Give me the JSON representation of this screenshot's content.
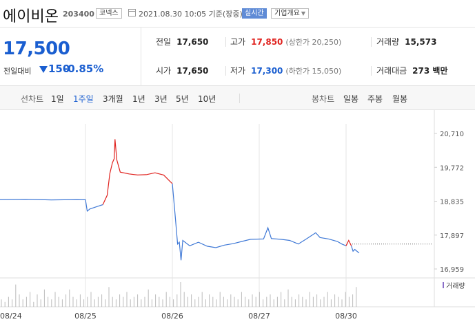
{
  "header": {
    "stock_name": "에이비온",
    "stock_code": "203400",
    "market": "코넥스",
    "datetime": "2021.08.30 10:05 기준(장중)",
    "realtime_button": "실시간",
    "company_button": "기업개요"
  },
  "price": {
    "current": "17,500",
    "diff_label": "전일대비",
    "diff_value": "150",
    "diff_rate": "-0.85%",
    "colors": {
      "down": "#1a5ed0",
      "up": "#e0221e"
    }
  },
  "quote": {
    "prev_close": {
      "label": "전일",
      "value": "17,650"
    },
    "high": {
      "label": "고가",
      "value": "17,850",
      "sub": "(상한가 20,250)"
    },
    "volume": {
      "label": "거래량",
      "value": "15,573"
    },
    "open": {
      "label": "시가",
      "value": "17,650"
    },
    "low": {
      "label": "저가",
      "value": "17,300",
      "sub": "(하한가 15,050)"
    },
    "amount": {
      "label": "거래대금",
      "value": "273 백만"
    }
  },
  "period_bar": {
    "line_label": "선차트",
    "line_periods": [
      "1일",
      "1주일",
      "3개월",
      "1년",
      "3년",
      "5년",
      "10년"
    ],
    "active_line_period": "1주일",
    "candle_label": "봉차트",
    "candle_periods": [
      "일봉",
      "주봉",
      "월봉"
    ]
  },
  "chart_data": {
    "type": "line",
    "y_ticks": [
      "20,710",
      "19,772",
      "18,835",
      "17,897",
      "16,959"
    ],
    "ylim": [
      16959,
      20710
    ],
    "x_labels": [
      "08/24",
      "08/25",
      "08/26",
      "08/27",
      "08/30"
    ],
    "prev_close_line": 17650,
    "volume_label": "거래량",
    "series": [
      {
        "color": "#3e78d6",
        "points": [
          [
            0,
            18880
          ],
          [
            0.3,
            18890
          ],
          [
            0.6,
            18870
          ],
          [
            0.9,
            18880
          ],
          [
            1.0,
            18875
          ],
          [
            1.02,
            18560
          ],
          [
            1.05,
            18620
          ],
          [
            1.15,
            18700
          ],
          [
            1.2,
            18740
          ]
        ]
      },
      {
        "color": "#e0221e",
        "points": [
          [
            1.2,
            18740
          ],
          [
            1.25,
            19000
          ],
          [
            1.28,
            19600
          ],
          [
            1.31,
            19900
          ],
          [
            1.33,
            20010
          ],
          [
            1.34,
            20550
          ],
          [
            1.36,
            19980
          ],
          [
            1.4,
            19640
          ],
          [
            1.5,
            19590
          ],
          [
            1.6,
            19560
          ],
          [
            1.7,
            19570
          ],
          [
            1.8,
            19620
          ],
          [
            1.9,
            19560
          ],
          [
            1.97,
            19390
          ],
          [
            2.0,
            19320
          ]
        ]
      },
      {
        "color": "#3e78d6",
        "points": [
          [
            2.0,
            19320
          ],
          [
            2.03,
            18500
          ],
          [
            2.06,
            17650
          ],
          [
            2.08,
            17700
          ],
          [
            2.1,
            17200
          ],
          [
            2.12,
            17750
          ],
          [
            2.2,
            17600
          ],
          [
            2.3,
            17700
          ],
          [
            2.4,
            17590
          ],
          [
            2.5,
            17550
          ],
          [
            2.6,
            17620
          ],
          [
            2.7,
            17660
          ],
          [
            2.8,
            17720
          ],
          [
            2.9,
            17780
          ],
          [
            3.05,
            17790
          ],
          [
            3.1,
            18100
          ],
          [
            3.14,
            17800
          ],
          [
            3.25,
            17780
          ],
          [
            3.35,
            17750
          ],
          [
            3.45,
            17650
          ],
          [
            3.55,
            17800
          ],
          [
            3.65,
            17960
          ],
          [
            3.7,
            17830
          ],
          [
            3.8,
            17790
          ],
          [
            3.9,
            17720
          ],
          [
            3.95,
            17650
          ],
          [
            4.0,
            17600
          ]
        ]
      },
      {
        "color": "#e0221e",
        "points": [
          [
            4.0,
            17600
          ],
          [
            4.03,
            17750
          ],
          [
            4.06,
            17600
          ]
        ]
      },
      {
        "color": "#3e78d6",
        "points": [
          [
            4.06,
            17600
          ],
          [
            4.08,
            17450
          ],
          [
            4.1,
            17500
          ],
          [
            4.15,
            17400
          ]
        ]
      }
    ],
    "volume": [
      0.3,
      0.2,
      0.4,
      0.3,
      0.9,
      0.5,
      0.3,
      0.4,
      0.6,
      0.2,
      0.5,
      0.3,
      0.7,
      0.4,
      0.3,
      0.6,
      0.4,
      0.3,
      0.5,
      0.7,
      0.4,
      0.3,
      0.5,
      0.3,
      0.4,
      0.6,
      0.3,
      0.4,
      0.5,
      0.3,
      0.8,
      0.4,
      0.3,
      0.5,
      0.4,
      0.6,
      0.3,
      0.4,
      0.5,
      0.3,
      0.4,
      0.7,
      0.3,
      0.5,
      0.4,
      0.3,
      0.6,
      0.4,
      0.3,
      0.5,
      1.0,
      0.6,
      0.4,
      0.5,
      0.3,
      0.4,
      0.6,
      0.3,
      0.5,
      0.4,
      0.3,
      0.6,
      0.4,
      0.3,
      0.5,
      0.4,
      0.3,
      0.6,
      0.4,
      0.3,
      0.5,
      0.4,
      0.6,
      0.3,
      0.4,
      0.5,
      0.3,
      0.4,
      0.6,
      0.3,
      0.7,
      0.4,
      0.3,
      0.5,
      0.4,
      0.3,
      0.6,
      0.4,
      0.5,
      0.3,
      0.4,
      0.6,
      0.3,
      0.5,
      0.4,
      0.3,
      0.6,
      0.4,
      0.5,
      0.8
    ]
  }
}
